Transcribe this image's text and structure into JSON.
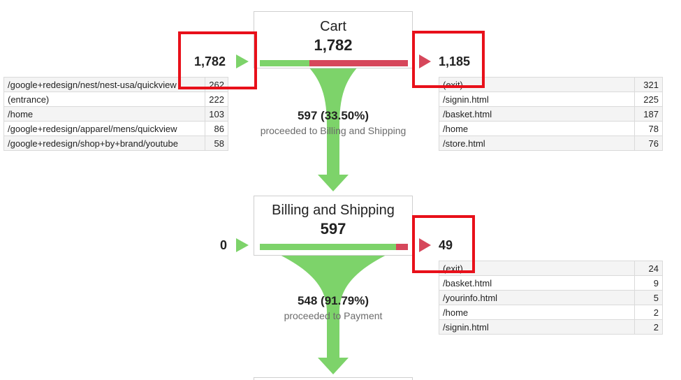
{
  "chart_data": {
    "type": "funnel",
    "steps": [
      {
        "name": "Cart",
        "count": "1,782",
        "entrances": "1,782",
        "exits": "1,185",
        "proceed_fraction": 0.335,
        "entrance_sources": [
          {
            "page": "/google+redesign/nest/nest-usa/quickview",
            "value": "262"
          },
          {
            "page": "(entrance)",
            "value": "222"
          },
          {
            "page": "/home",
            "value": "103"
          },
          {
            "page": "/google+redesign/apparel/mens/quickview",
            "value": "86"
          },
          {
            "page": "/google+redesign/shop+by+brand/youtube",
            "value": "58"
          }
        ],
        "exit_destinations": [
          {
            "page": "(exit)",
            "value": "321"
          },
          {
            "page": "/signin.html",
            "value": "225"
          },
          {
            "page": "/basket.html",
            "value": "187"
          },
          {
            "page": "/home",
            "value": "78"
          },
          {
            "page": "/store.html",
            "value": "76"
          }
        ]
      },
      {
        "name": "Billing and Shipping",
        "count": "597",
        "entrances": "0",
        "exits": "49",
        "proceed_fraction": 0.9179,
        "exit_destinations": [
          {
            "page": "(exit)",
            "value": "24"
          },
          {
            "page": "/basket.html",
            "value": "9"
          },
          {
            "page": "/yourinfo.html",
            "value": "5"
          },
          {
            "page": "/home",
            "value": "2"
          },
          {
            "page": "/signin.html",
            "value": "2"
          }
        ]
      }
    ],
    "flows": [
      {
        "count": "597 (33.50%)",
        "label": "proceeded to Billing and Shipping"
      },
      {
        "count": "548 (91.79%)",
        "label": "proceeded to Payment"
      }
    ]
  },
  "colors": {
    "proceed": "#7dd36a",
    "exit": "#d6475b",
    "highlight": "#e8101a"
  }
}
